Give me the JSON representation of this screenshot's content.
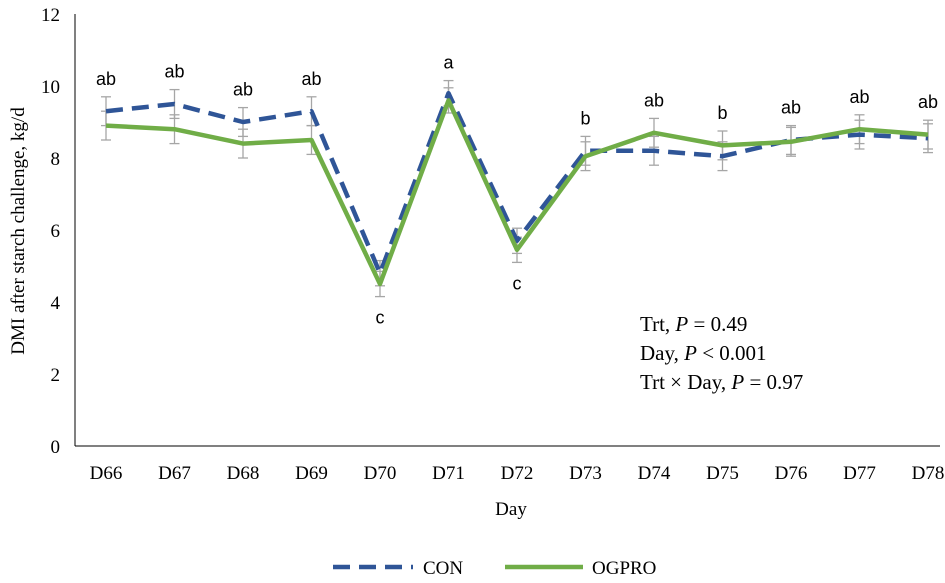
{
  "chart_data": {
    "type": "line",
    "title": "",
    "xlabel": "Day",
    "ylabel": "DMI after starch challenge, kg/d",
    "ylim": [
      0,
      12
    ],
    "yticks": [
      0,
      2,
      4,
      6,
      8,
      10,
      12
    ],
    "grid": false,
    "legend_position": "bottom",
    "categories": [
      "D66",
      "D67",
      "D68",
      "D69",
      "D70",
      "D71",
      "D72",
      "D73",
      "D74",
      "D75",
      "D76",
      "D77",
      "D78"
    ],
    "series": [
      {
        "name": "CON",
        "style": "dashed",
        "color": "#2F5597",
        "values": [
          9.3,
          9.5,
          9.0,
          9.3,
          4.8,
          9.8,
          5.7,
          8.2,
          8.2,
          8.05,
          8.5,
          8.65,
          8.55
        ],
        "error": [
          0.4,
          0.4,
          0.4,
          0.4,
          0.35,
          0.35,
          0.35,
          0.4,
          0.4,
          0.4,
          0.4,
          0.4,
          0.4
        ]
      },
      {
        "name": "OGPRO",
        "style": "solid",
        "color": "#70AD47",
        "values": [
          8.9,
          8.8,
          8.4,
          8.5,
          4.5,
          9.6,
          5.45,
          8.05,
          8.7,
          8.35,
          8.45,
          8.8,
          8.65
        ],
        "error": [
          0.4,
          0.4,
          0.4,
          0.4,
          0.35,
          0.35,
          0.35,
          0.4,
          0.4,
          0.4,
          0.4,
          0.4,
          0.4
        ]
      }
    ],
    "significance_letters": [
      "ab",
      "ab",
      "ab",
      "ab",
      "c",
      "a",
      "c",
      "b",
      "ab",
      "b",
      "ab",
      "ab",
      "ab"
    ],
    "letter_positions": [
      "above",
      "above",
      "above",
      "above",
      "below",
      "above",
      "below",
      "above",
      "above",
      "above",
      "above",
      "above",
      "above"
    ],
    "annotations": [
      {
        "prefix": "Trt, ",
        "p": "P",
        "suffix": " = 0.49"
      },
      {
        "prefix": "Day, ",
        "p": "P",
        "suffix": " < 0.001"
      },
      {
        "prefix": "Trt × Day, ",
        "p": "P",
        "suffix": " = 0.97"
      }
    ]
  }
}
